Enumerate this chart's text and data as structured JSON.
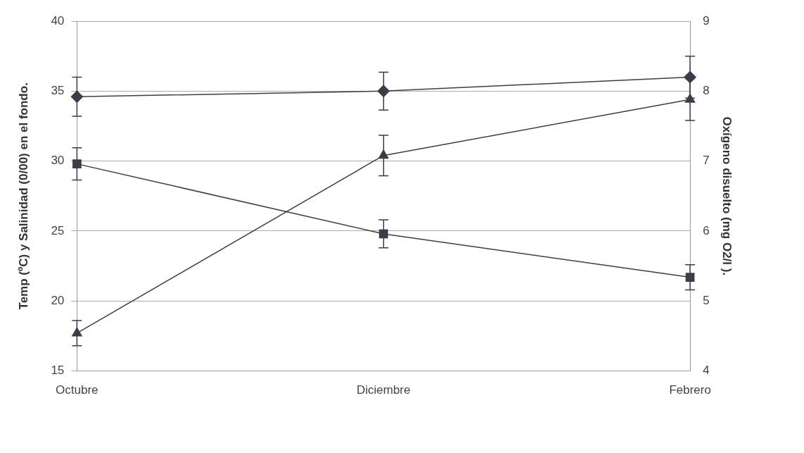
{
  "chart_data": {
    "type": "line",
    "xlabel": null,
    "ylabel": "Temp (ºC) y Salinidad (0/00) en el fondo.",
    "y2label": "Oxígeno disuelto (mg O2/l ).",
    "categories": [
      "Octubre",
      "Diciembre",
      "Febrero"
    ],
    "series": [
      {
        "color": "#3a3e48",
        "marker": "diamond",
        "values": [
          34.6,
          35.0,
          36.0
        ],
        "errors": [
          1.4,
          1.35,
          1.5
        ]
      },
      {
        "color": "#3a3e48",
        "marker": "square",
        "values": [
          29.8,
          24.8,
          21.7
        ],
        "errors": [
          1.15,
          1.0,
          0.9
        ]
      },
      {
        "color": "#3a3e48",
        "marker": "triangle",
        "axis": "y2",
        "values": [
          4.54,
          7.08,
          7.88
        ],
        "errors": [
          0.18,
          0.29,
          0.3
        ]
      }
    ],
    "ylim": [
      15,
      40
    ],
    "yticks": [
      15,
      20,
      25,
      30,
      35,
      40
    ],
    "y2lim": [
      4,
      9
    ],
    "y2ticks": [
      4,
      5,
      6,
      7,
      8,
      9
    ],
    "grid": "y",
    "legend": false,
    "line_style": "solid"
  }
}
